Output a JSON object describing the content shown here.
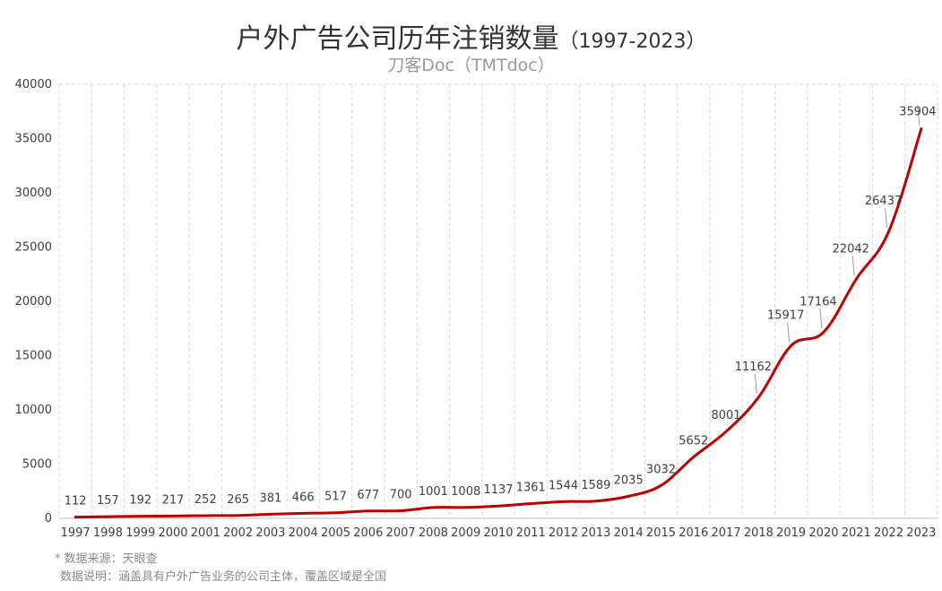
{
  "header": {
    "title": "户外广告公司历年注销数量",
    "title_suffix": "（1997-2023）",
    "subtitle": "刀客Doc（TMTdoc）"
  },
  "footer": {
    "source": "* 数据来源：天眼查",
    "note": "数据说明：涵盖具有户外广告业务的公司主体，覆盖区域是全国"
  },
  "colors": {
    "line": "#c00000",
    "grid": "#d9d9d9",
    "text": "#404040"
  },
  "chart_data": {
    "type": "line",
    "title": "户外广告公司历年注销数量（1997-2023）",
    "x": [
      "1997",
      "1998",
      "1999",
      "2000",
      "2001",
      "2002",
      "2003",
      "2004",
      "2005",
      "2006",
      "2007",
      "2008",
      "2009",
      "2010",
      "2011",
      "2012",
      "2013",
      "2014",
      "2015",
      "2016",
      "2017",
      "2018",
      "2019",
      "2020",
      "2021",
      "2022",
      "2023"
    ],
    "series": [
      {
        "values": [
          112,
          157,
          192,
          217,
          252,
          265,
          381,
          466,
          517,
          677,
          700,
          1001,
          1008,
          1137,
          1361,
          1544,
          1589,
          2035,
          3032,
          5652,
          8001,
          11162,
          15917,
          17164,
          22042,
          26437,
          35904
        ]
      }
    ],
    "y_ticks": [
      0,
      5000,
      10000,
      15000,
      20000,
      25000,
      30000,
      35000,
      40000
    ],
    "ylim": [
      0,
      40000
    ],
    "grid": "vertical dashed",
    "legend": "none",
    "smooth": true
  }
}
